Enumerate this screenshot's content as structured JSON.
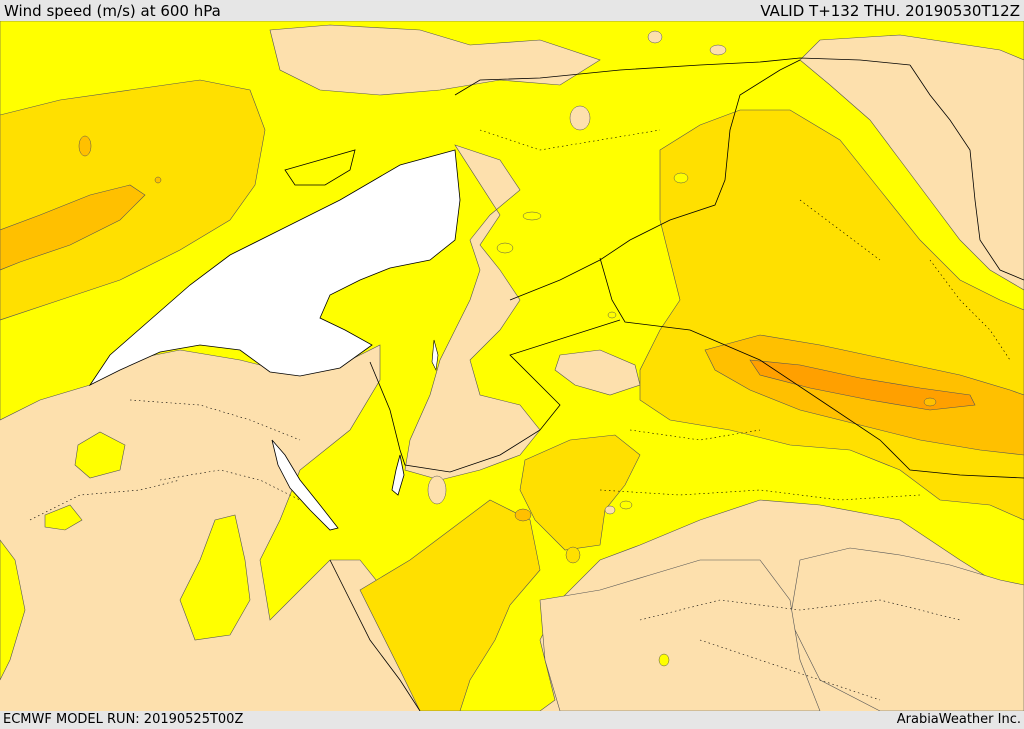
{
  "header": {
    "title": "Wind speed (m/s) at 600 hPa",
    "valid": "VALID T+132 THU. 20190530T12Z"
  },
  "footer": {
    "model_run": "ECMWF MODEL RUN: 20190525T00Z",
    "credit": "ArabiaWeather Inc."
  },
  "colors": {
    "very_light": "#fde0ad",
    "light": "#ffff00",
    "moderate": "#ffe000",
    "strong": "#ffc000",
    "very_strong": "#ffa000",
    "sea": "#ffffff",
    "frame": "#e6e6e6"
  }
}
